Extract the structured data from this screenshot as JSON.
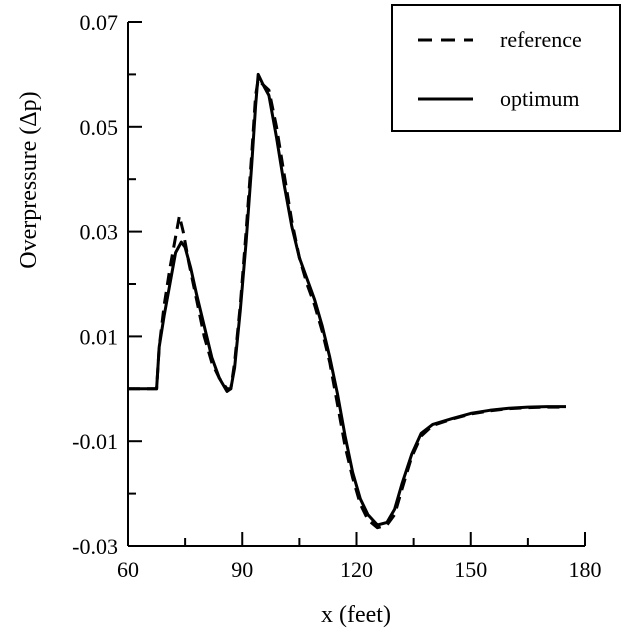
{
  "chart_data": {
    "type": "line",
    "title": "",
    "xlabel": "x (feet)",
    "ylabel": "Overpressure (Δp)",
    "xlim": [
      60,
      180
    ],
    "ylim": [
      -0.03,
      0.07
    ],
    "x_ticks": [
      "60",
      "90",
      "120",
      "150",
      "180"
    ],
    "y_ticks": [
      "0.07",
      "0.05",
      "0.03",
      "0.01",
      "-0.01",
      "-0.03"
    ],
    "x_tick_values": [
      60,
      90,
      120,
      150,
      180
    ],
    "y_tick_values": [
      0.07,
      0.05,
      0.03,
      0.01,
      -0.01,
      -0.03
    ],
    "grid": false,
    "legend_position": "top-right",
    "colors": {
      "line": "#000000"
    },
    "series": [
      {
        "name": "reference",
        "style": "dashed",
        "points": [
          [
            60,
            0.0
          ],
          [
            67.5,
            0.0
          ],
          [
            68.2,
            0.008
          ],
          [
            69.5,
            0.016
          ],
          [
            71,
            0.023
          ],
          [
            72.5,
            0.029
          ],
          [
            73.5,
            0.033
          ],
          [
            74.5,
            0.03
          ],
          [
            76,
            0.024
          ],
          [
            78,
            0.017
          ],
          [
            80,
            0.01
          ],
          [
            82,
            0.005
          ],
          [
            84,
            0.002
          ],
          [
            86,
            0.0
          ],
          [
            87,
            0.0
          ],
          [
            88,
            0.005
          ],
          [
            89.5,
            0.016
          ],
          [
            91,
            0.03
          ],
          [
            92.5,
            0.045
          ],
          [
            93.5,
            0.056
          ],
          [
            94.2,
            0.059
          ],
          [
            95.5,
            0.058
          ],
          [
            97,
            0.057
          ],
          [
            99,
            0.05
          ],
          [
            101,
            0.041
          ],
          [
            103,
            0.032
          ],
          [
            105,
            0.025
          ],
          [
            107,
            0.02
          ],
          [
            109,
            0.016
          ],
          [
            111,
            0.011
          ],
          [
            113,
            0.005
          ],
          [
            115,
            -0.003
          ],
          [
            117,
            -0.011
          ],
          [
            119,
            -0.017
          ],
          [
            121,
            -0.022
          ],
          [
            123,
            -0.025
          ],
          [
            125.5,
            -0.0265
          ],
          [
            128,
            -0.026
          ],
          [
            130,
            -0.024
          ],
          [
            132,
            -0.019
          ],
          [
            134.5,
            -0.013
          ],
          [
            137,
            -0.009
          ],
          [
            140,
            -0.007
          ],
          [
            145,
            -0.0058
          ],
          [
            150,
            -0.0048
          ],
          [
            155,
            -0.0042
          ],
          [
            160,
            -0.0038
          ],
          [
            165,
            -0.0036
          ],
          [
            170,
            -0.0035
          ],
          [
            175,
            -0.0035
          ]
        ]
      },
      {
        "name": "optimum",
        "style": "solid",
        "points": [
          [
            60,
            0.0
          ],
          [
            67.5,
            0.0
          ],
          [
            68.2,
            0.008
          ],
          [
            69.5,
            0.014
          ],
          [
            71,
            0.02
          ],
          [
            72.5,
            0.026
          ],
          [
            74,
            0.028
          ],
          [
            75,
            0.027
          ],
          [
            76.5,
            0.023
          ],
          [
            78,
            0.018
          ],
          [
            80,
            0.012
          ],
          [
            82,
            0.006
          ],
          [
            84,
            0.002
          ],
          [
            86,
            -0.0005
          ],
          [
            87,
            0.0
          ],
          [
            88,
            0.004
          ],
          [
            89.5,
            0.015
          ],
          [
            91,
            0.028
          ],
          [
            92.5,
            0.043
          ],
          [
            93.5,
            0.054
          ],
          [
            94.2,
            0.06
          ],
          [
            95.5,
            0.058
          ],
          [
            97,
            0.056
          ],
          [
            99,
            0.048
          ],
          [
            101,
            0.039
          ],
          [
            103,
            0.031
          ],
          [
            105,
            0.025
          ],
          [
            107,
            0.021
          ],
          [
            109,
            0.017
          ],
          [
            111,
            0.012
          ],
          [
            113,
            0.006
          ],
          [
            115,
            -0.001
          ],
          [
            117,
            -0.009
          ],
          [
            119,
            -0.016
          ],
          [
            121,
            -0.021
          ],
          [
            123,
            -0.024
          ],
          [
            125.5,
            -0.026
          ],
          [
            128,
            -0.0255
          ],
          [
            130,
            -0.023
          ],
          [
            132,
            -0.018
          ],
          [
            134.5,
            -0.0125
          ],
          [
            137,
            -0.0085
          ],
          [
            140,
            -0.0068
          ],
          [
            145,
            -0.0057
          ],
          [
            150,
            -0.0047
          ],
          [
            155,
            -0.0041
          ],
          [
            160,
            -0.0037
          ],
          [
            165,
            -0.0035
          ],
          [
            170,
            -0.0034
          ],
          [
            175,
            -0.0034
          ]
        ]
      }
    ]
  }
}
